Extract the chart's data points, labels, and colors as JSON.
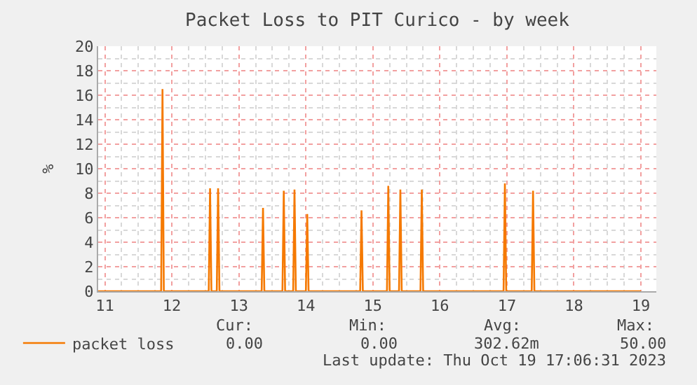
{
  "chart_data": {
    "type": "line",
    "title": "Packet Loss to PIT Curico - by week",
    "ylabel": "%",
    "x": [
      10.9,
      11.84,
      11.86,
      11.88,
      12.55,
      12.57,
      12.59,
      12.67,
      12.69,
      12.71,
      13.34,
      13.36,
      13.38,
      13.65,
      13.67,
      13.69,
      13.81,
      13.83,
      13.85,
      14.0,
      14.02,
      14.04,
      14.81,
      14.83,
      14.85,
      15.21,
      15.23,
      15.25,
      15.39,
      15.41,
      15.43,
      15.71,
      15.73,
      15.75,
      16.95,
      16.97,
      16.99,
      17.37,
      17.39,
      17.41,
      19.0
    ],
    "series": [
      {
        "name": "packet loss",
        "color": "#f57900",
        "values": [
          0,
          0,
          16.5,
          0,
          0,
          8.4,
          0,
          0,
          8.4,
          0,
          0,
          6.8,
          0,
          0,
          8.2,
          0,
          0,
          8.3,
          0,
          0,
          6.3,
          0,
          0,
          6.6,
          0,
          0,
          8.6,
          0,
          0,
          8.3,
          0,
          0,
          8.3,
          0,
          0,
          8.8,
          0,
          0,
          8.2,
          0,
          0
        ]
      }
    ],
    "xlim": [
      10.9,
      19.23
    ],
    "xticks": [
      11,
      12,
      13,
      14,
      15,
      16,
      17,
      18,
      19
    ],
    "ylim": [
      0,
      20
    ],
    "yticks": [
      0,
      2,
      4,
      6,
      8,
      10,
      12,
      14,
      16,
      18,
      20
    ],
    "grid": true,
    "legend": "bottom left",
    "marker": "none",
    "line_style": "solid",
    "annotations": [
      "Cur:",
      "Min:",
      "Avg:",
      "Max:",
      "0.00",
      "0.00",
      "302.62m",
      "50.00",
      "Last update: Thu Oct 19 17:06:31 2023"
    ]
  }
}
